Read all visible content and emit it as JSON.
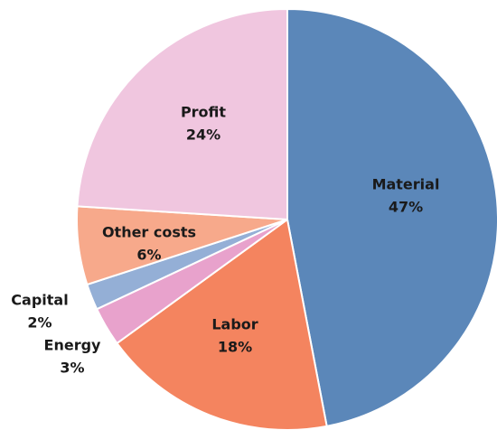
{
  "chart_data": {
    "type": "pie",
    "categories": [
      "Material",
      "Labor",
      "Energy",
      "Capital",
      "Other costs",
      "Profit"
    ],
    "values": [
      47,
      18,
      3,
      2,
      6,
      24
    ],
    "value_labels": [
      "47%",
      "18%",
      "3%",
      "2%",
      "6%",
      "24%"
    ],
    "colors": [
      "#5b87b9",
      "#f4845f",
      "#e8a2cc",
      "#94afd6",
      "#f7a98b",
      "#f0c6df"
    ]
  }
}
